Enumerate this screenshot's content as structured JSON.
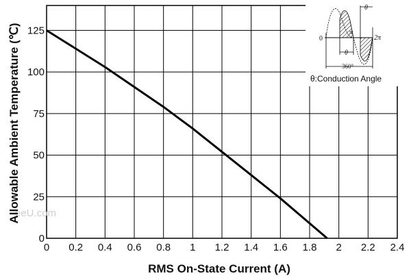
{
  "chart_data": {
    "type": "line",
    "title": "",
    "xlabel": "RMS On-State Current (A)",
    "ylabel": "Allowable Ambient Temperature (℃)",
    "xlim": [
      0,
      2.4
    ],
    "ylim": [
      0,
      140
    ],
    "x_ticks": [
      "0",
      "0.2",
      "0.4",
      "0.6",
      "0.8",
      "1",
      "1.2",
      "1.4",
      "1.6",
      "1.8",
      "2",
      "2.2",
      "2.4"
    ],
    "y_ticks": [
      "0",
      "25",
      "50",
      "75",
      "100",
      "125"
    ],
    "grid": true,
    "series": [
      {
        "x": [
          0,
          0.2,
          0.4,
          0.6,
          0.8,
          1.0,
          1.2,
          1.4,
          1.6,
          1.8,
          1.92
        ],
        "y": [
          125,
          114,
          103,
          91,
          79,
          66,
          52,
          38,
          24,
          9,
          0
        ]
      }
    ],
    "inset": {
      "labels": {
        "zero": "0",
        "pi": "π",
        "two_pi": "2π",
        "theta": "θ",
        "degrees": "360°",
        "caption": "θ:Conduction Angle"
      }
    }
  },
  "watermark": "eeU.com",
  "colors": {
    "line": "#000000",
    "grid": "#000000",
    "watermark": "#cfcfcf"
  }
}
